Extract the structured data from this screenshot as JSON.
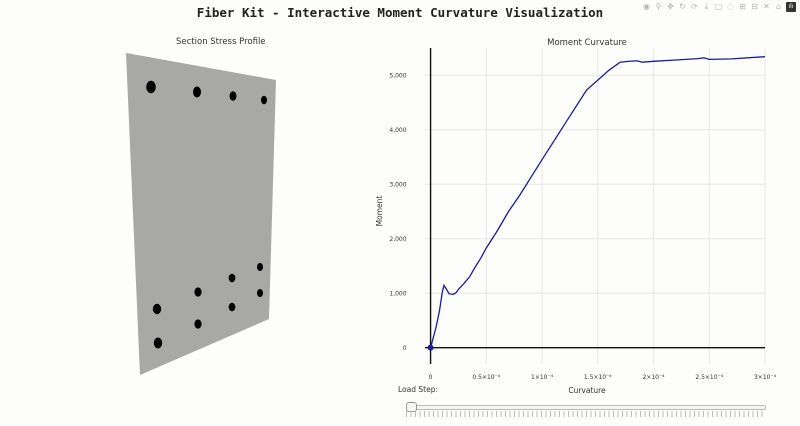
{
  "title": "Fiber Kit - Interactive Moment Curvature Visualization",
  "modebar": [
    {
      "name": "camera-icon",
      "glyph": "◉"
    },
    {
      "name": "zoom-icon",
      "glyph": "⚲"
    },
    {
      "name": "pan-icon",
      "glyph": "✥"
    },
    {
      "name": "orbit-icon",
      "glyph": "↻"
    },
    {
      "name": "turntable-icon",
      "glyph": "⟳"
    },
    {
      "name": "download-icon",
      "glyph": "⤓"
    },
    {
      "name": "box-select-icon",
      "glyph": "▢"
    },
    {
      "name": "lasso-icon",
      "glyph": "◌"
    },
    {
      "name": "zoom-in-icon",
      "glyph": "⊞"
    },
    {
      "name": "zoom-out-icon",
      "glyph": "⊟"
    },
    {
      "name": "autoscale-icon",
      "glyph": "✕"
    },
    {
      "name": "home-icon",
      "glyph": "⌂"
    }
  ],
  "section_title": "Section Stress Profile",
  "section": {
    "face_color": "#a8a8a6",
    "bar_color": "#000000"
  },
  "load_step_label": "Load Step:",
  "chart_data": {
    "type": "line",
    "title": "Moment Curvature",
    "xlabel": "Curvature",
    "ylabel": "Moment",
    "xlim": [
      -5e-06,
      0.0003
    ],
    "ylim": [
      -300,
      5500
    ],
    "x_ticks": [
      0,
      5e-05,
      0.0001,
      0.00015,
      0.0002,
      0.00025,
      0.0003
    ],
    "x_tick_labels": [
      "0",
      "0.5×10⁻⁴",
      "1×10⁻⁴",
      "1.5×10⁻⁴",
      "2×10⁻⁴",
      "2.5×10⁻⁴",
      "3×10⁻⁴"
    ],
    "y_ticks": [
      0,
      1000,
      2000,
      3000,
      4000,
      5000
    ],
    "y_tick_labels": [
      "0",
      "1,000",
      "2,000",
      "3,000",
      "4,000",
      "5,000"
    ],
    "grid": true,
    "line_color": "#1c1c9c",
    "marker": {
      "x": 0,
      "y": 0,
      "color": "#1c1c9c"
    },
    "series": [
      {
        "x": [
          0,
          1.5e-06,
          5e-06,
          8e-06,
          1.05e-05,
          1.2e-05,
          1.4e-05,
          1.65e-05,
          2e-05,
          2.3e-05,
          2.5e-05,
          3e-05,
          3.5e-05,
          4e-05,
          4.5e-05,
          5e-05,
          6e-05,
          7e-05,
          8e-05,
          0.0001,
          0.00012,
          0.00014,
          0.00015,
          0.00016,
          0.00017,
          0.000175,
          0.00018,
          0.000185,
          0.00019,
          0.0002,
          0.00022,
          0.00024,
          0.000245,
          0.00025,
          0.00027,
          0.0003
        ],
        "y": [
          0,
          110,
          380,
          680,
          1020,
          1145,
          1080,
          990,
          975,
          1010,
          1070,
          1180,
          1300,
          1480,
          1640,
          1830,
          2150,
          2500,
          2800,
          3450,
          4090,
          4730,
          4910,
          5090,
          5240,
          5250,
          5260,
          5265,
          5240,
          5255,
          5280,
          5305,
          5320,
          5290,
          5300,
          5340
        ]
      }
    ]
  }
}
